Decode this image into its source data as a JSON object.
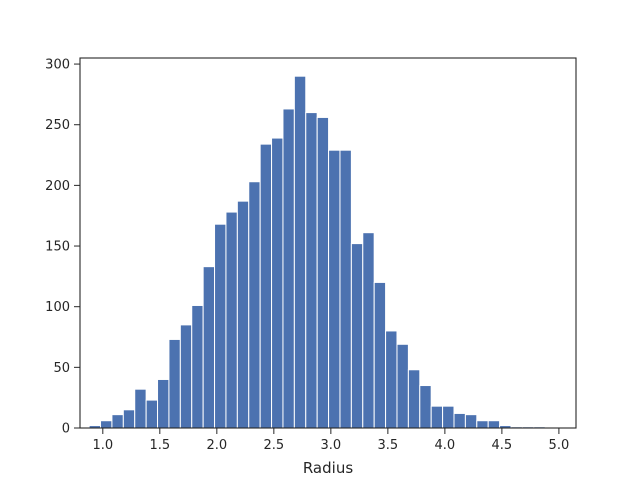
{
  "chart_data": {
    "type": "bar",
    "title": "",
    "xlabel": "Radius",
    "ylabel": "",
    "xlim": [
      0.8,
      5.15
    ],
    "ylim": [
      0,
      305
    ],
    "xticks": [
      1.0,
      1.5,
      2.0,
      2.5,
      3.0,
      3.5,
      4.0,
      4.5,
      5.0
    ],
    "xtick_labels": [
      "1.0",
      "1.5",
      "2.0",
      "2.5",
      "3.0",
      "3.5",
      "4.0",
      "4.5",
      "5.0"
    ],
    "yticks": [
      0,
      50,
      100,
      150,
      200,
      250,
      300
    ],
    "ytick_labels": [
      "0",
      "50",
      "100",
      "150",
      "200",
      "250",
      "300"
    ],
    "grid": false,
    "bins": {
      "start": 0.88,
      "width": 0.1
    },
    "values": [
      2,
      6,
      11,
      15,
      32,
      23,
      40,
      73,
      85,
      101,
      133,
      168,
      178,
      187,
      203,
      234,
      239,
      263,
      290,
      260,
      256,
      229,
      229,
      152,
      161,
      120,
      80,
      69,
      48,
      35,
      18,
      18,
      12,
      11,
      6,
      6,
      2,
      1,
      1,
      1
    ]
  },
  "colors": {
    "bar": "#4c72b0",
    "edge": "#ffffff",
    "axis": "#262626"
  }
}
